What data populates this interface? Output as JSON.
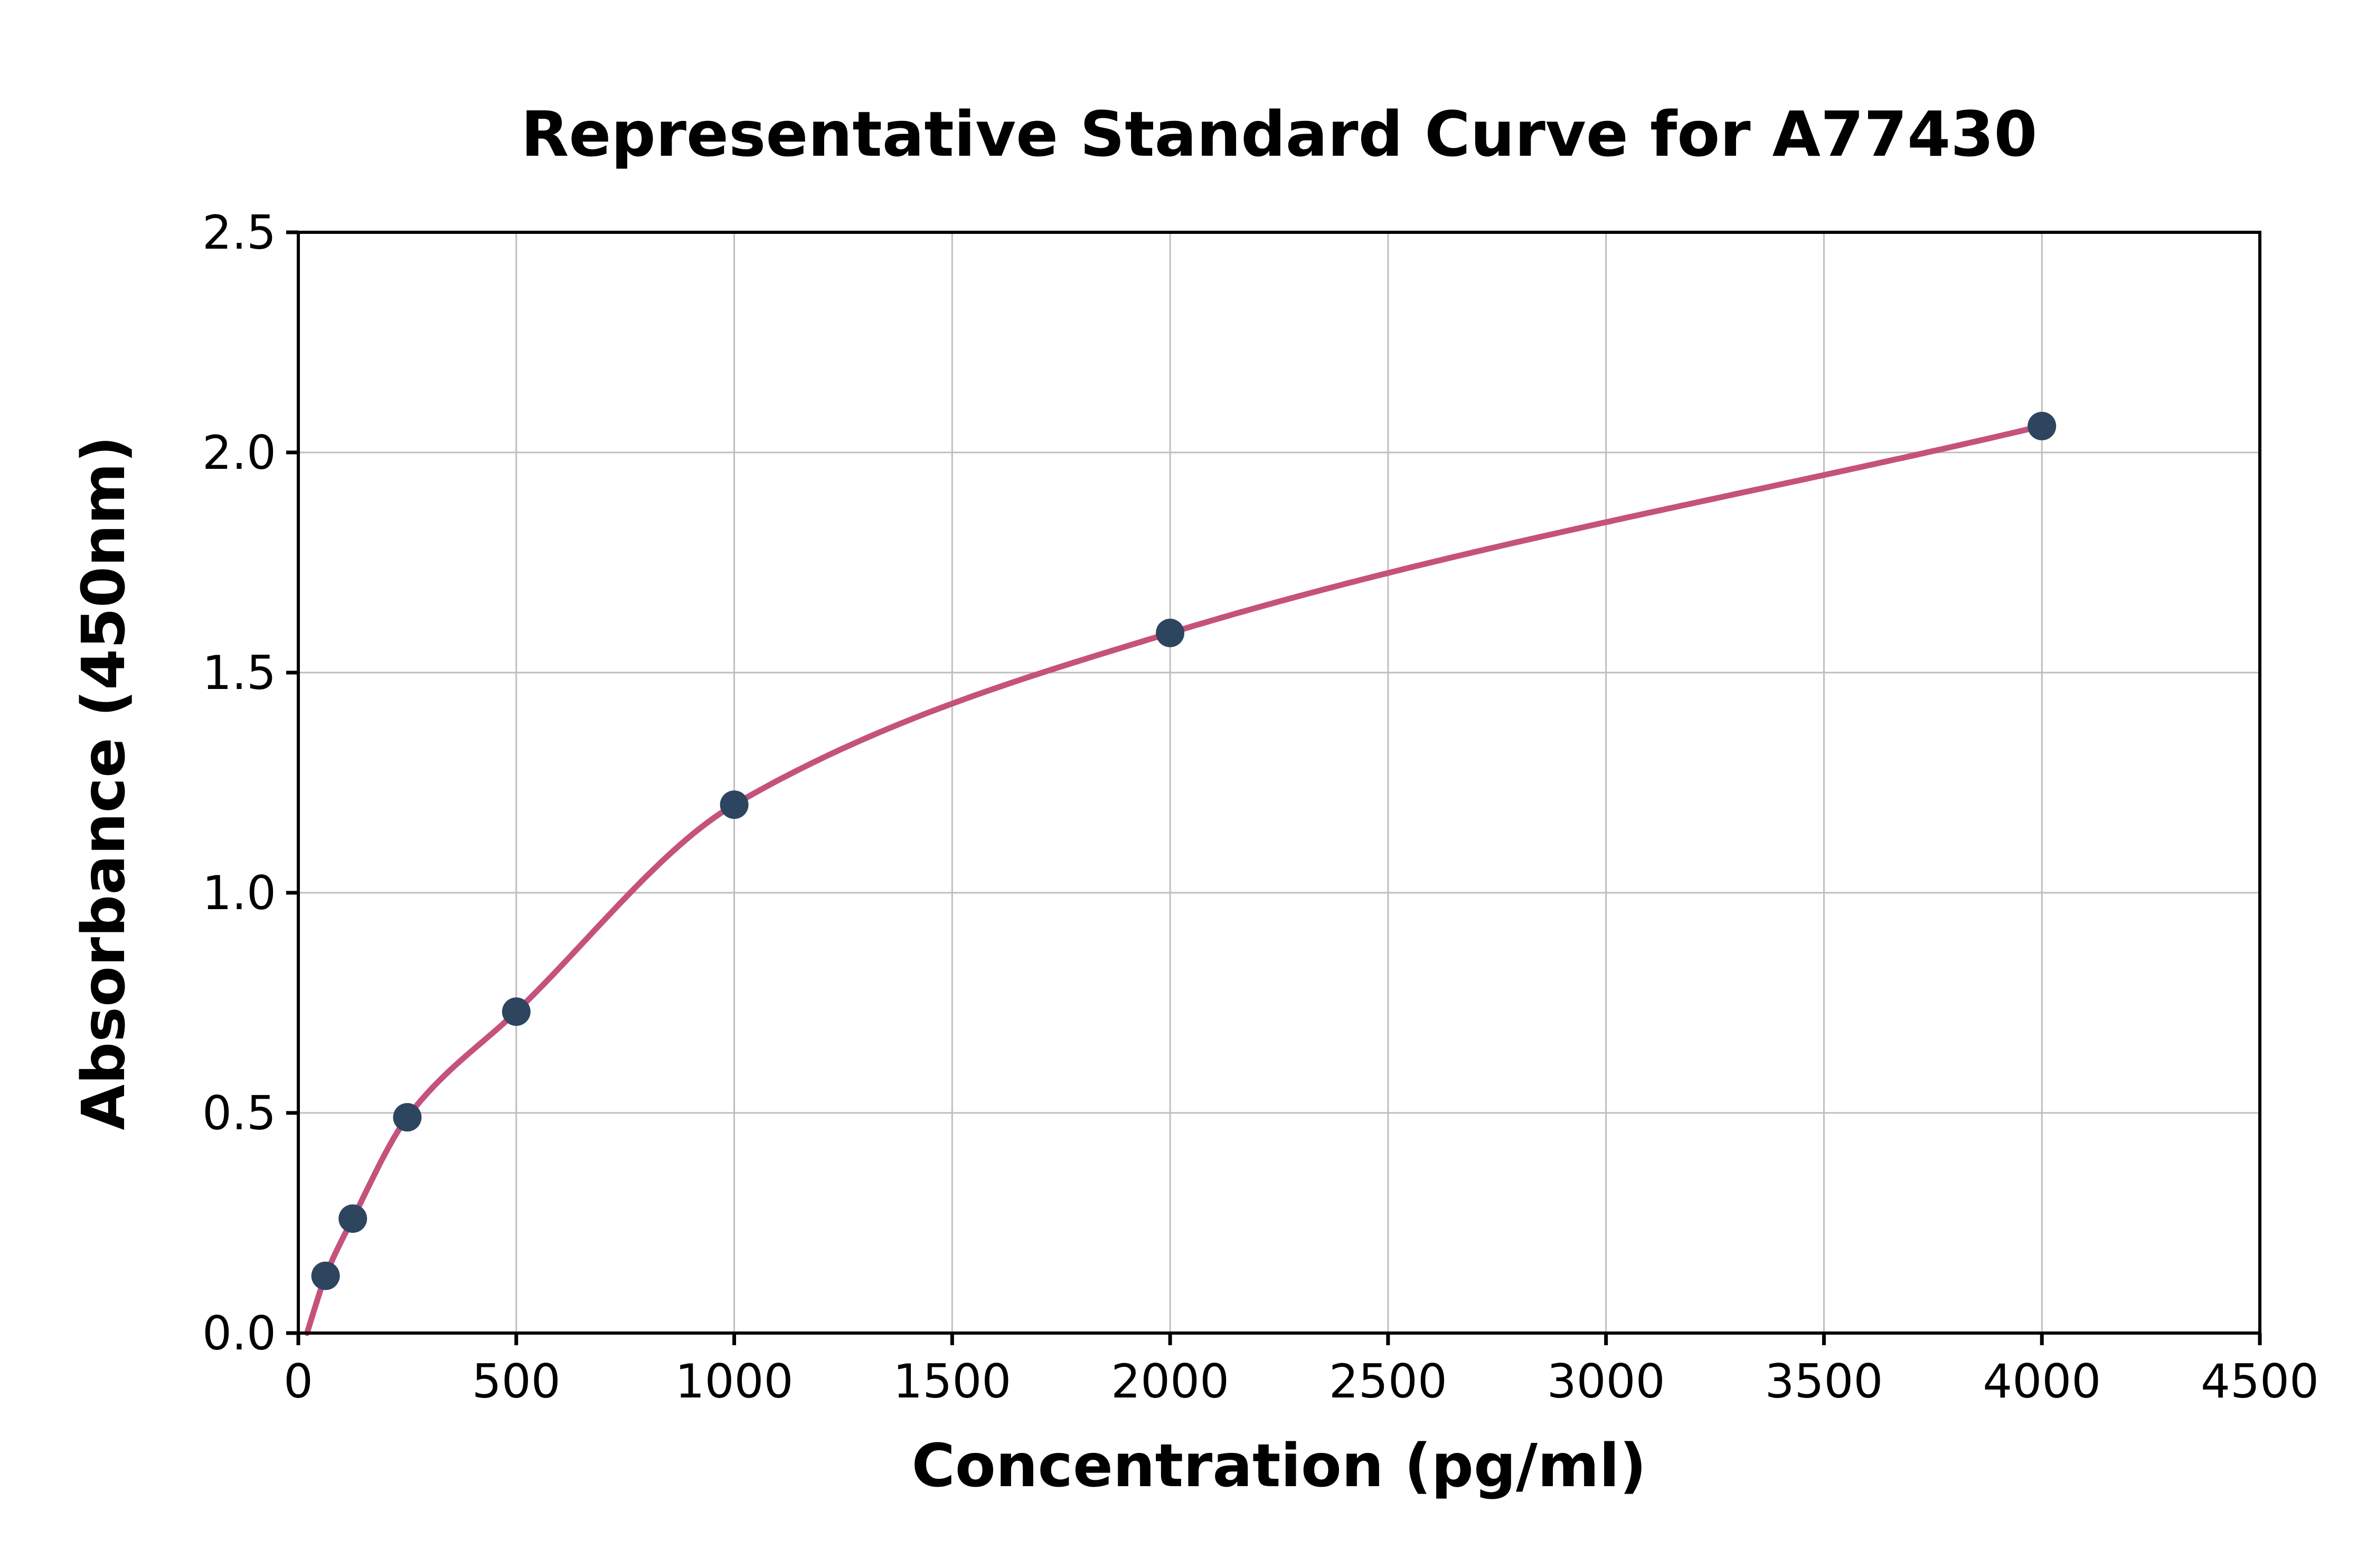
{
  "chart_data": {
    "type": "scatter",
    "title": "Representative Standard Curve for A77430",
    "xlabel": "Concentration (pg/ml)",
    "ylabel": "Absorbance (450nm)",
    "xlim": [
      0,
      4500
    ],
    "ylim": [
      0,
      2.5
    ],
    "grid": true,
    "legend": "none",
    "x_ticks": [
      0,
      500,
      1000,
      1500,
      2000,
      2500,
      3000,
      3500,
      4000,
      4500
    ],
    "x_tick_labels": [
      "0",
      "500",
      "1000",
      "1500",
      "2000",
      "2500",
      "3000",
      "3500",
      "4000",
      "4500"
    ],
    "y_ticks": [
      0.0,
      0.5,
      1.0,
      1.5,
      2.0,
      2.5
    ],
    "y_tick_labels": [
      "0.0",
      "0.5",
      "1.0",
      "1.5",
      "2.0",
      "2.5"
    ],
    "points": {
      "x": [
        62.5,
        125,
        250,
        500,
        1000,
        2000,
        4000
      ],
      "y": [
        0.13,
        0.26,
        0.49,
        0.73,
        1.2,
        1.59,
        2.06
      ]
    },
    "curve_start": {
      "x": 20,
      "y": 0.0
    },
    "colors": {
      "point": "#2e4560",
      "curve": "#c5527c",
      "grid": "#bfbfbf",
      "axis": "#000000",
      "background": "#ffffff"
    }
  }
}
